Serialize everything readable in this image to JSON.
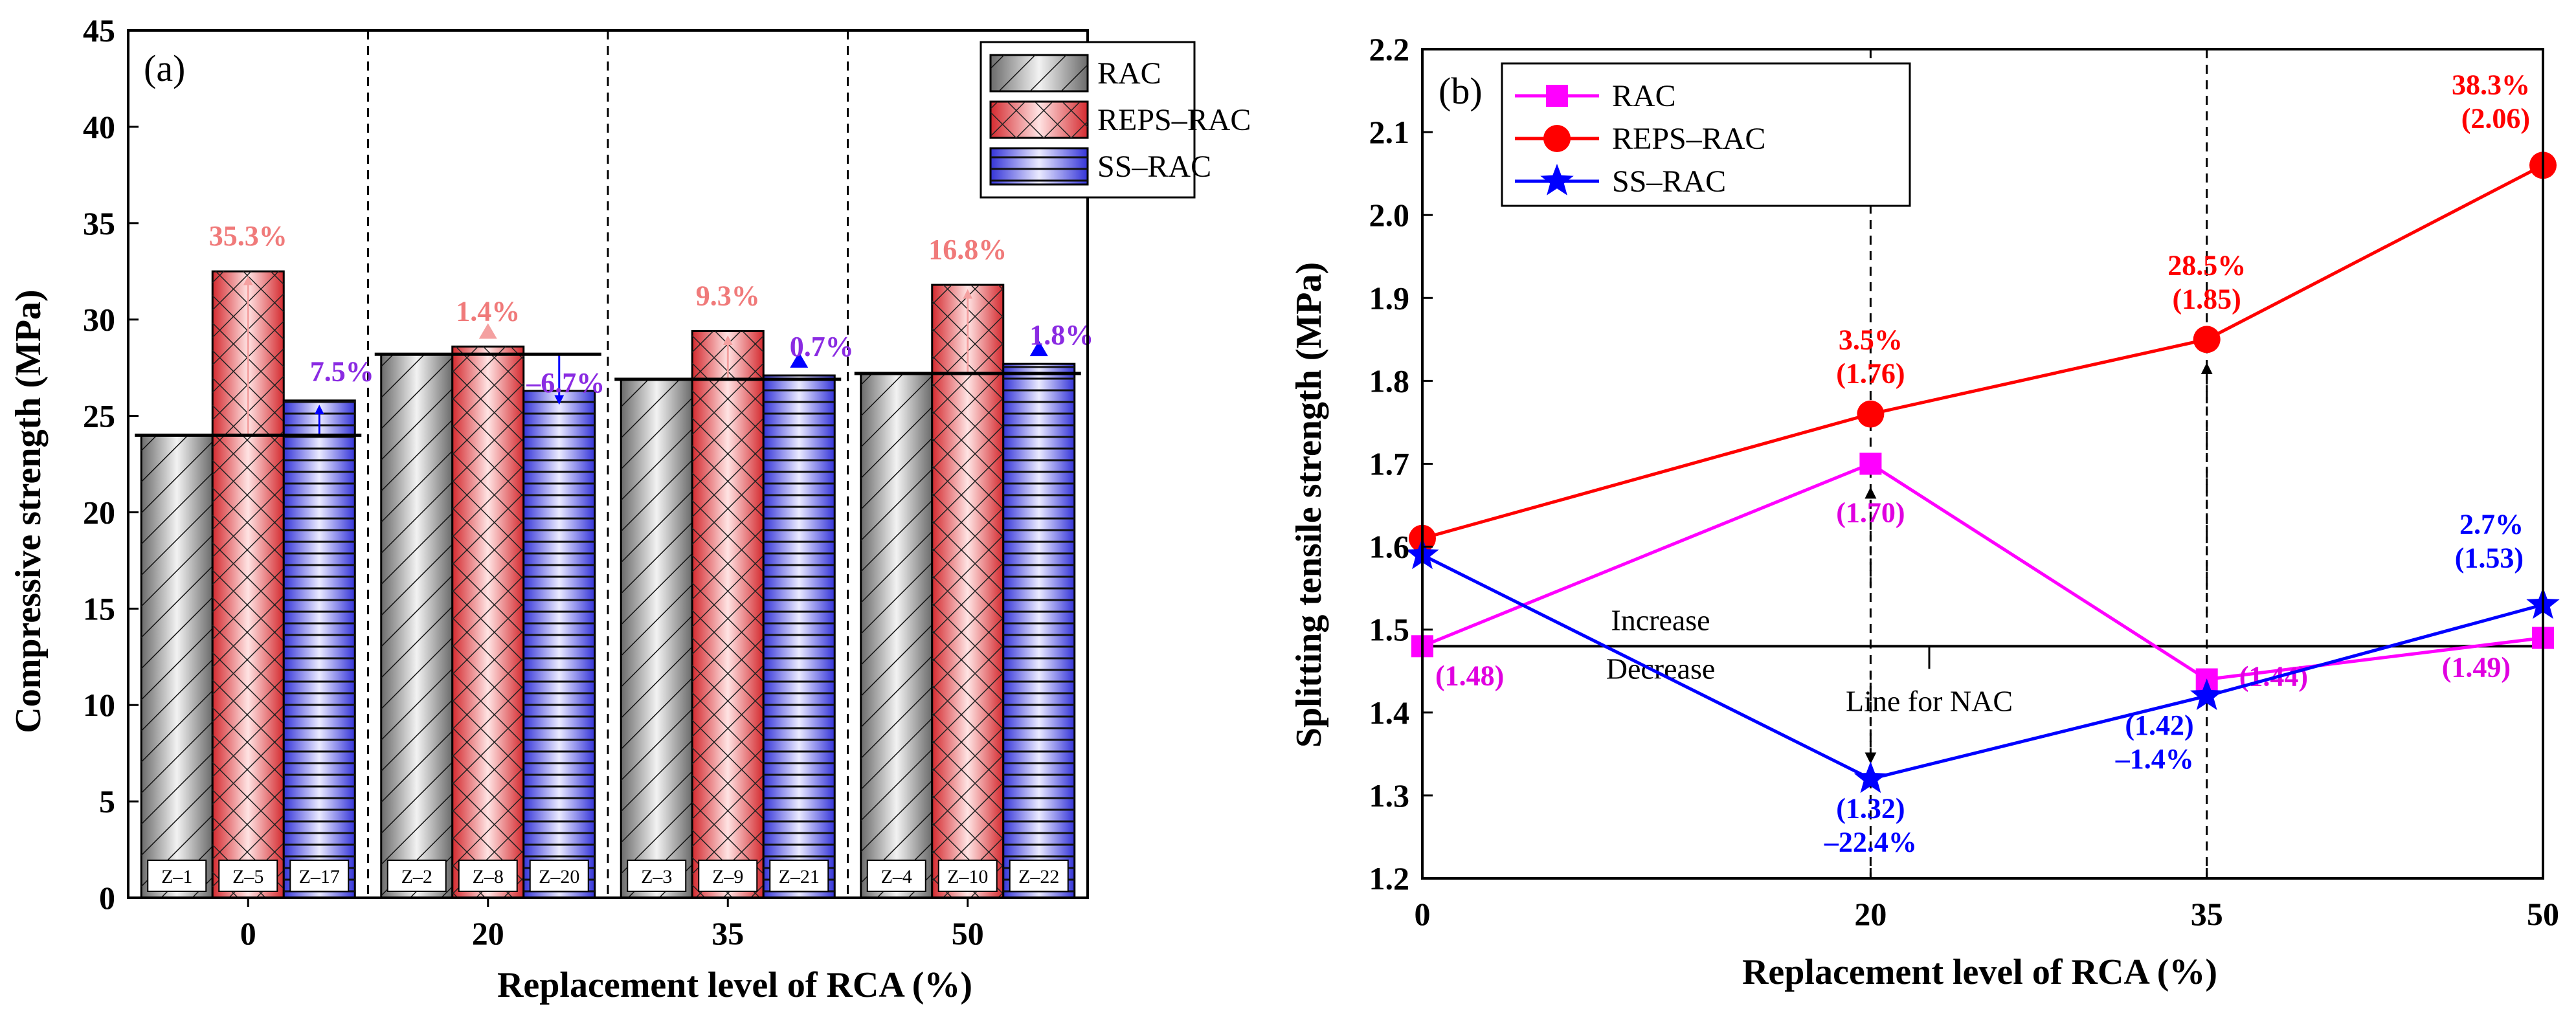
{
  "chart_data": [
    {
      "type": "bar",
      "panel_label": "(a)",
      "xlabel": "Replacement level of RCA (%)",
      "ylabel": "Compressive strength (MPa)",
      "categories": [
        "0",
        "20",
        "35",
        "50"
      ],
      "ylim": [
        0,
        45
      ],
      "yticks": [
        "0",
        "5",
        "10",
        "15",
        "20",
        "25",
        "30",
        "35",
        "40",
        "45"
      ],
      "series": [
        {
          "name": "RAC",
          "values": [
            24.0,
            28.2,
            26.9,
            27.2
          ],
          "specimens": [
            "Z–1",
            "Z–2",
            "Z–3",
            "Z–4"
          ],
          "pattern": "diagonal-hatch",
          "color": "#a9a9a9",
          "annotations": [
            "",
            "",
            "",
            ""
          ]
        },
        {
          "name": "REPS–RAC",
          "values": [
            32.5,
            28.6,
            29.4,
            31.8
          ],
          "specimens": [
            "Z–5",
            "Z–8",
            "Z–9",
            "Z–10"
          ],
          "pattern": "cross-hatch",
          "color": "#e8393e",
          "annotations": [
            "35.3%",
            "1.4%",
            "9.3%",
            "16.8%"
          ],
          "annotation_color": "#f07a7a"
        },
        {
          "name": "SS–RAC",
          "values": [
            25.8,
            26.3,
            27.1,
            27.7
          ],
          "specimens": [
            "Z–17",
            "Z–20",
            "Z–21",
            "Z–22"
          ],
          "pattern": "horizontal-lines",
          "color": "#4a4ae6",
          "annotations": [
            "7.5%",
            "–6.7%",
            "0.7%",
            "1.8%"
          ],
          "annotation_color": "#8a2be2"
        }
      ],
      "legend": "top-right"
    },
    {
      "type": "line",
      "panel_label": "(b)",
      "xlabel": "Replacement level of RCA (%)",
      "ylabel": "Splitting tensile strength (MPa)",
      "x": [
        0,
        20,
        35,
        50
      ],
      "xticks": [
        "0",
        "20",
        "35",
        "50"
      ],
      "ylim": [
        1.2,
        2.2
      ],
      "yticks": [
        "1.2",
        "1.3",
        "1.4",
        "1.5",
        "1.6",
        "1.7",
        "1.8",
        "1.9",
        "2.0",
        "2.1",
        "2.2"
      ],
      "reference_line": {
        "y": 1.48,
        "label": "Line for NAC",
        "above_label": "Increase",
        "below_label": "Decrease"
      },
      "series": [
        {
          "name": "RAC",
          "values": [
            1.48,
            1.7,
            1.44,
            1.49
          ],
          "marker": "square",
          "color": "#ff00ff",
          "labels": [
            "(1.48)",
            "(1.70)",
            "(1.44)",
            "(1.49)"
          ]
        },
        {
          "name": "REPS–RAC",
          "values": [
            1.61,
            1.76,
            1.85,
            2.06
          ],
          "marker": "circle",
          "color": "#ff0000",
          "labels": [
            "",
            "3.5%|(1.76)",
            "28.5%|(1.85)",
            "38.3%|(2.06)"
          ]
        },
        {
          "name": "SS–RAC",
          "values": [
            1.59,
            1.32,
            1.42,
            1.53
          ],
          "marker": "star",
          "color": "#0000ff",
          "labels": [
            "",
            "(1.32)|–22.4%",
            "(1.42)|–1.4%",
            "2.7%|(1.53)"
          ]
        }
      ],
      "legend": "top-left"
    }
  ]
}
